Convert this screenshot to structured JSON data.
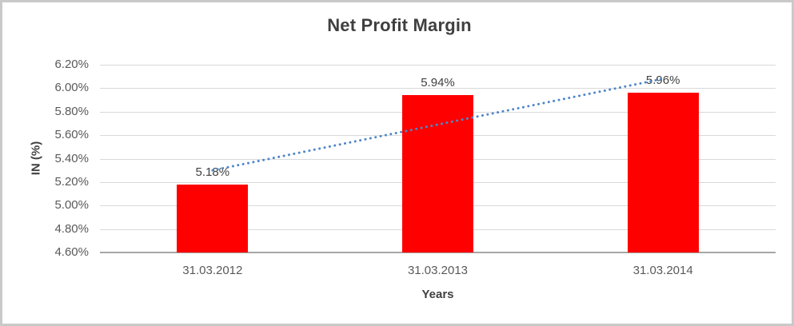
{
  "chart_data": {
    "type": "bar",
    "title": "Net Profit Margin",
    "xlabel": "Years",
    "ylabel": "IN (%)",
    "categories": [
      "31.03.2012",
      "31.03.2013",
      "31.03.2014"
    ],
    "values": [
      5.18,
      5.94,
      5.96
    ],
    "value_labels": [
      "5.18%",
      "5.94%",
      "5.96%"
    ],
    "yticks": [
      "6.20%",
      "6.00%",
      "5.80%",
      "5.60%",
      "5.40%",
      "5.20%",
      "5.00%",
      "4.80%",
      "4.60%"
    ],
    "ylim": [
      4.6,
      6.2
    ],
    "ytick_step": 0.2,
    "grid": true,
    "legend": "none",
    "bar_color": "#ff0000",
    "grid_color": "#d9d9d9",
    "axis_line_color": "#a6a6a6",
    "title_color": "#3f3f3f",
    "tick_color": "#595959",
    "label_color": "#404040",
    "trendline": {
      "type": "linear",
      "style": "dotted",
      "color": "#4e87c9",
      "start_value": 5.3,
      "end_value": 6.08
    }
  }
}
